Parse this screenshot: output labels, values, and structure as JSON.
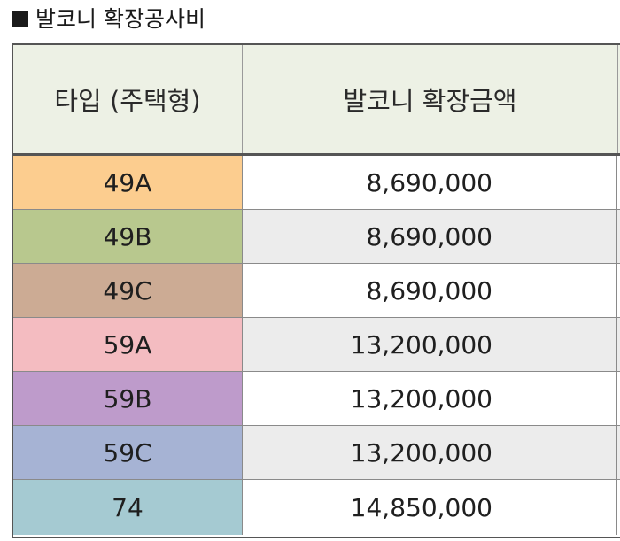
{
  "title": "발코니 확장공사비",
  "header": {
    "type_label": "타입 (주택형)",
    "amount_label": "발코니 확장금액"
  },
  "rows": [
    {
      "type": "49A",
      "amount": "8,690,000",
      "color": "#fccd8f"
    },
    {
      "type": "49B",
      "amount": "8,690,000",
      "color": "#b8c88e"
    },
    {
      "type": "49C",
      "amount": "8,690,000",
      "color": "#ccab94"
    },
    {
      "type": "59A",
      "amount": "13,200,000",
      "color": "#f4bcc1"
    },
    {
      "type": "59B",
      "amount": "13,200,000",
      "color": "#be9bcb"
    },
    {
      "type": "59C",
      "amount": "13,200,000",
      "color": "#a6b3d4"
    },
    {
      "type": "74",
      "amount": "14,850,000",
      "color": "#a5cad2"
    }
  ]
}
